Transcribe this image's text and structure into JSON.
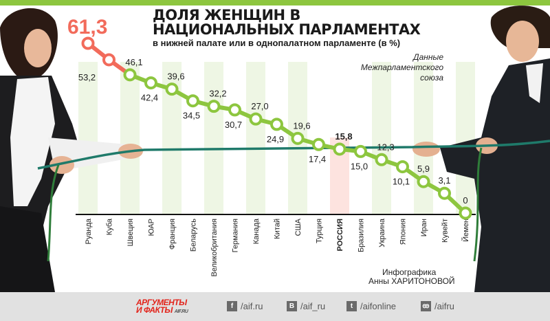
{
  "title": "ДОЛЯ ЖЕНЩИН В НАЦИОНАЛЬНЫХ ПАРЛАМЕНТАХ",
  "subtitle": "в нижней палате или в однопалатном парламенте (в %)",
  "source": "Данные Межпарламентского союза",
  "credit_line1": "Инфографика",
  "credit_line2": "Анны ХАРИТОНОВОЙ",
  "colors": {
    "accent_green": "#8dc63f",
    "top_red": "#f26b5b",
    "rope": "#1f7a6a",
    "highlight_column": "#fde3df"
  },
  "chart_data": {
    "type": "line",
    "title": "ДОЛЯ ЖЕНЩИН В НАЦИОНАЛЬНЫХ ПАРЛАМЕНТАХ",
    "ylabel": "%",
    "highlight": "РОССИЯ",
    "categories": [
      "Руанда",
      "Куба",
      "Швеция",
      "ЮАР",
      "Франция",
      "Беларусь",
      "Великобритания",
      "Германия",
      "Канада",
      "Китай",
      "США",
      "Турция",
      "РОССИЯ",
      "Бразилия",
      "Украина",
      "Япония",
      "Иран",
      "Кувейт",
      "Йемен"
    ],
    "values": [
      61.3,
      53.2,
      46.1,
      42.4,
      39.6,
      34.5,
      32.2,
      30.7,
      27.0,
      24.9,
      19.6,
      17.4,
      15.8,
      15.0,
      12.3,
      10.1,
      5.9,
      3.1,
      0
    ],
    "value_labels": [
      "61,3",
      "53,2",
      "46,1",
      "42,4",
      "39,6",
      "34,5",
      "32,2",
      "30,7",
      "27,0",
      "24,9",
      "19,6",
      "17,4",
      "15,8",
      "15,0",
      "12,3",
      "10,1",
      "5,9",
      "3,1",
      "0"
    ]
  },
  "footer": {
    "logo_line1": "АРГУМЕНТЫ",
    "logo_line2": "И ФАКТЫ",
    "logo_site": "AIF.RU",
    "social": [
      {
        "icon": "facebook-icon",
        "glyph": "f",
        "label": "/aif.ru"
      },
      {
        "icon": "vk-icon",
        "glyph": "B",
        "label": "/aif_ru"
      },
      {
        "icon": "twitter-icon",
        "glyph": "t",
        "label": "/aifonline"
      },
      {
        "icon": "odnoklassniki-icon",
        "glyph": "ok",
        "label": "/aifru"
      }
    ]
  }
}
